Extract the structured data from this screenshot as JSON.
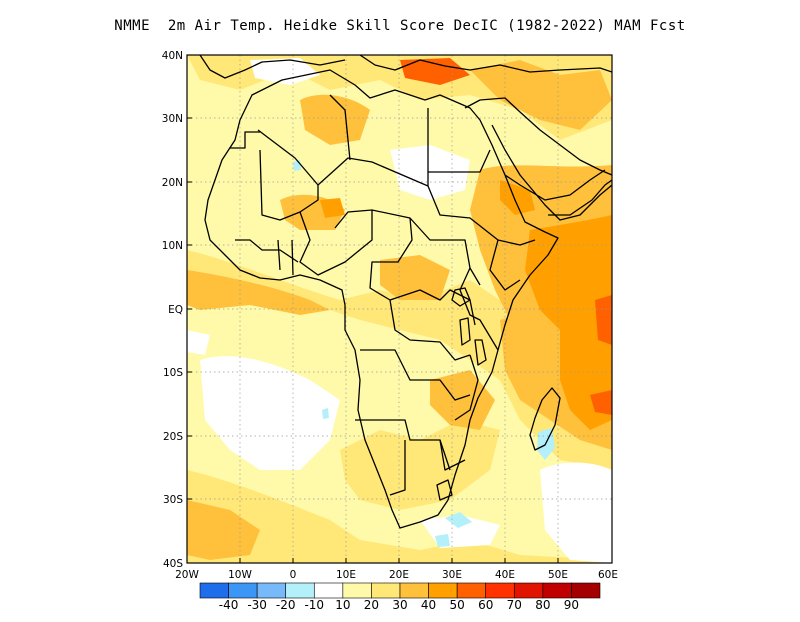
{
  "title": "NMME  2m Air Temp. Heidke Skill Score DecIC (1982-2022) MAM Fcst",
  "map": {
    "lat_labels": [
      "40N",
      "30N",
      "20N",
      "10N",
      "EQ",
      "10S",
      "20S",
      "30S",
      "40S"
    ],
    "lon_labels": [
      "20W",
      "10W",
      "0",
      "10E",
      "20E",
      "30E",
      "40E",
      "50E",
      "60E"
    ],
    "grid": true,
    "projection": "lat-lon",
    "extent": {
      "lon": [
        -20,
        60
      ],
      "lat": [
        -40,
        40
      ]
    }
  },
  "colorbar": {
    "labels": [
      "-40",
      "-30",
      "-20",
      "-10",
      "10",
      "20",
      "30",
      "40",
      "50",
      "60",
      "70",
      "80",
      "90"
    ],
    "colors": [
      "#1e6eeb",
      "#3c96f5",
      "#78b9fa",
      "#b4f0fa",
      "#ffffff",
      "#fffaaa",
      "#ffe878",
      "#ffc03c",
      "#ffa000",
      "#ff6000",
      "#ff3200",
      "#e11400",
      "#c00000",
      "#a50000"
    ]
  }
}
